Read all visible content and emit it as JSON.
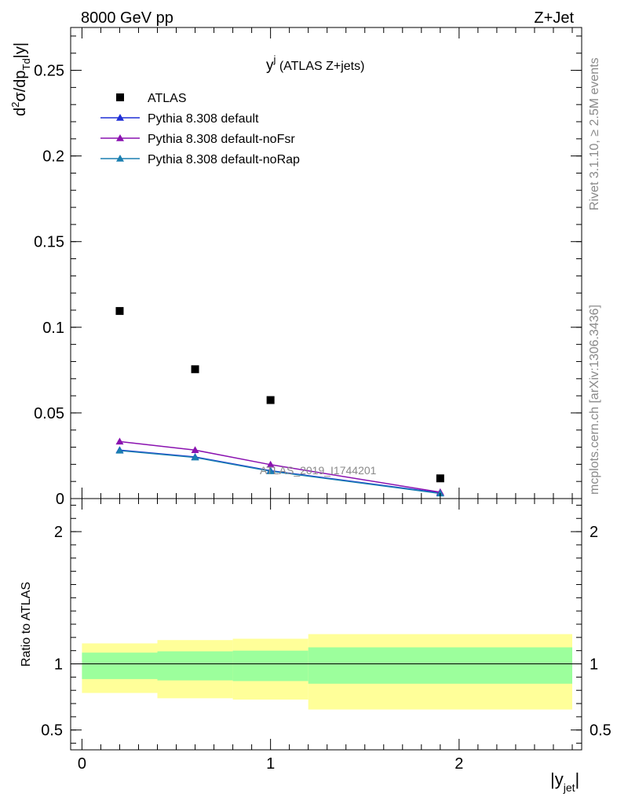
{
  "header": {
    "left": "8000 GeV pp",
    "right": "Z+Jet"
  },
  "side_labels": {
    "rivet": "Rivet 3.1.10, ≥ 2.5M events",
    "mcplots": "mcplots.cern.ch [arXiv:1306.3436]"
  },
  "watermark": "ATLAS_2019_I1744201",
  "chart_data": [
    {
      "type": "scatter",
      "panel": "main",
      "title_main": "y",
      "title_sup": "j",
      "title_rest": " (ATLAS Z+jets)",
      "ylabel": {
        "a": "d",
        "a_sup": "2",
        "b": "σ/dp",
        "b_sub": "Td",
        "c": "|y|"
      },
      "xlim": [
        -0.06,
        2.65
      ],
      "ylim": [
        0,
        0.275
      ],
      "yticks": [
        {
          "v": 0,
          "label": "0"
        },
        {
          "v": 0.05,
          "label": "0.05"
        },
        {
          "v": 0.1,
          "label": "0.1"
        },
        {
          "v": 0.15,
          "label": "0.15"
        },
        {
          "v": 0.2,
          "label": "0.2"
        },
        {
          "v": 0.25,
          "label": "0.25"
        }
      ],
      "legend_position": "top-left",
      "series": [
        {
          "name": "ATLAS",
          "marker": "square",
          "color": "#000000",
          "x": [
            0.2,
            0.6,
            1.0,
            1.9
          ],
          "y": [
            0.1095,
            0.0755,
            0.0575,
            0.0118
          ]
        },
        {
          "name": "Pythia 8.308 default",
          "marker": "triangle",
          "color": "#1f2fd6",
          "x": [
            0.2,
            0.6,
            1.0,
            1.9
          ],
          "y": [
            0.0283,
            0.0243,
            0.0163,
            0.0033
          ]
        },
        {
          "name": "Pythia 8.308 default-noFsr",
          "marker": "triangle",
          "color": "#8a12b0",
          "x": [
            0.2,
            0.6,
            1.0,
            1.9
          ],
          "y": [
            0.0333,
            0.0283,
            0.0198,
            0.0037
          ]
        },
        {
          "name": "Pythia 8.308 default-noRap",
          "marker": "triangle",
          "color": "#1a7fb0",
          "x": [
            0.2,
            0.6,
            1.0,
            1.9
          ],
          "y": [
            0.028,
            0.024,
            0.016,
            0.003
          ]
        }
      ]
    },
    {
      "type": "area",
      "panel": "ratio",
      "ylabel": "Ratio to ATLAS",
      "xlabel": {
        "main": "|y",
        "sub": "jet",
        "end": "|"
      },
      "xlim": [
        -0.06,
        2.65
      ],
      "ylim": [
        0.35,
        2.25
      ],
      "yticks": [
        {
          "v": 0.5,
          "label": "0.5"
        },
        {
          "v": 1,
          "label": "1"
        },
        {
          "v": 2,
          "label": "2"
        }
      ],
      "xticks": [
        {
          "v": 0,
          "label": "0"
        },
        {
          "v": 1,
          "label": "1"
        },
        {
          "v": 2,
          "label": "2"
        }
      ],
      "reference_line": 1,
      "bins": [
        {
          "x": [
            0.0,
            0.4
          ],
          "stat": [
            0.885,
            1.085
          ],
          "total": [
            0.78,
            1.155
          ]
        },
        {
          "x": [
            0.4,
            0.8
          ],
          "stat": [
            0.875,
            1.095
          ],
          "total": [
            0.74,
            1.18
          ]
        },
        {
          "x": [
            0.8,
            1.2
          ],
          "stat": [
            0.87,
            1.1
          ],
          "total": [
            0.73,
            1.19
          ]
        },
        {
          "x": [
            1.2,
            2.6
          ],
          "stat": [
            0.85,
            1.125
          ],
          "total": [
            0.655,
            1.225
          ]
        }
      ],
      "colors": {
        "stat": "#9cff9c",
        "total": "#ffff99"
      }
    }
  ]
}
